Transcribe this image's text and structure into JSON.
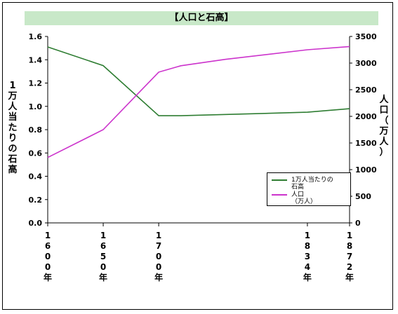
{
  "chart_data": {
    "type": "line",
    "title": "【人口と石高】",
    "x": [
      "1600年",
      "1650年",
      "1700年",
      "1834年",
      "1872年"
    ],
    "x_numeric": [
      1600,
      1650,
      1700,
      1834,
      1872
    ],
    "xlim": [
      1600,
      1872
    ],
    "ylabel_left": "1万人当たりの石高",
    "ylabel_right": "人口（万人）",
    "ylim_left": [
      0,
      1.6
    ],
    "ylim_right": [
      0,
      3500
    ],
    "yticks_left": [
      "1.6",
      "1.4",
      "1.2",
      "1.0",
      "0.8",
      "0.6",
      "0.4",
      "0.2",
      "0.0"
    ],
    "yticks_right": [
      "3500",
      "3000",
      "2500",
      "2000",
      "1500",
      "1000",
      "500",
      "0"
    ],
    "grid": false,
    "legend_position": "bottom-right",
    "series": [
      {
        "name": "1万人当たりの石高",
        "axis": "left",
        "color": "#2e7d32",
        "values": [
          1.51,
          1.35,
          0.92,
          0.95,
          0.98
        ],
        "inner_points": [
          {
            "x": 1720,
            "y": 0.92
          }
        ]
      },
      {
        "name": "人口（万人）",
        "axis": "right",
        "color": "#cc33cc",
        "values": [
          1227,
          1750,
          2830,
          3250,
          3311
        ],
        "inner_points": [
          {
            "x": 1720,
            "y": 2950
          },
          {
            "x": 1760,
            "y": 3070
          }
        ]
      }
    ]
  },
  "legend": {
    "items": [
      {
        "label_line1": "1万人当たりの",
        "label_line2": "石高",
        "color": "#2e7d32"
      },
      {
        "label_line1": "人口",
        "label_line2": "（万人）",
        "color": "#cc33cc"
      }
    ]
  }
}
